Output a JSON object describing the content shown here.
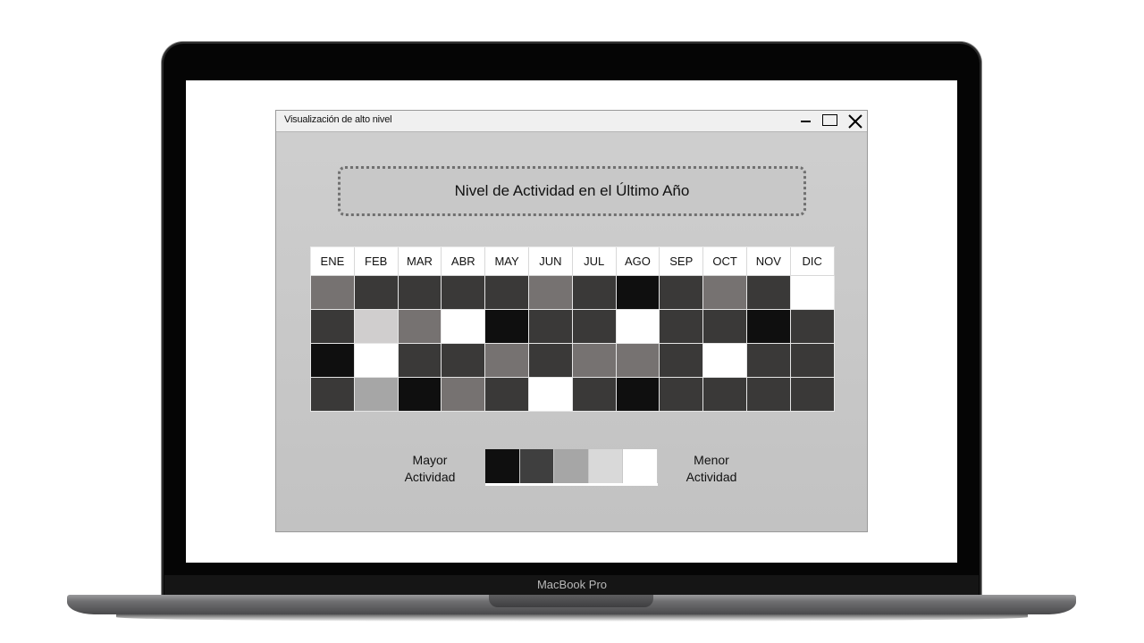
{
  "device": {
    "brand_label": "MacBook Pro"
  },
  "window": {
    "title": "Visualización de alto nivel",
    "controls": {
      "minimize": "minimize-icon",
      "maximize": "maximize-icon",
      "close": "close-icon"
    }
  },
  "heading": "Nivel de Actividad en el Último Año",
  "heatmap": {
    "months": [
      "ENE",
      "FEB",
      "MAR",
      "ABR",
      "MAY",
      "JUN",
      "JUL",
      "AGO",
      "SEP",
      "OCT",
      "NOV",
      "DIC"
    ],
    "rows": [
      [
        "#767271",
        "#3a3938",
        "#3a3938",
        "#3a3938",
        "#3a3938",
        "#767271",
        "#3a3938",
        "#0f0f0f",
        "#3a3938",
        "#767271",
        "#3a3938",
        "#ffffff"
      ],
      [
        "#3a3938",
        "#d0cece",
        "#767271",
        "#ffffff",
        "#0f0f0f",
        "#3a3938",
        "#3a3938",
        "#ffffff",
        "#3a3938",
        "#3a3938",
        "#0f0f0f",
        "#3a3938"
      ],
      [
        "#0f0f0f",
        "#ffffff",
        "#3a3938",
        "#3a3938",
        "#767271",
        "#3a3938",
        "#767271",
        "#767271",
        "#3a3938",
        "#ffffff",
        "#3a3938",
        "#3a3938"
      ],
      [
        "#3a3938",
        "#a6a6a6",
        "#0f0f0f",
        "#767271",
        "#3a3938",
        "#ffffff",
        "#3a3938",
        "#0f0f0f",
        "#3a3938",
        "#3a3938",
        "#3a3938",
        "#3a3938"
      ]
    ]
  },
  "legend": {
    "high_line1": "Mayor",
    "high_line2": "Actividad",
    "low_line1": "Menor",
    "low_line2": "Actividad",
    "scale": [
      "#0f0f0f",
      "#3f3f3f",
      "#a6a6a6",
      "#d9d9d9",
      "#ffffff"
    ]
  }
}
